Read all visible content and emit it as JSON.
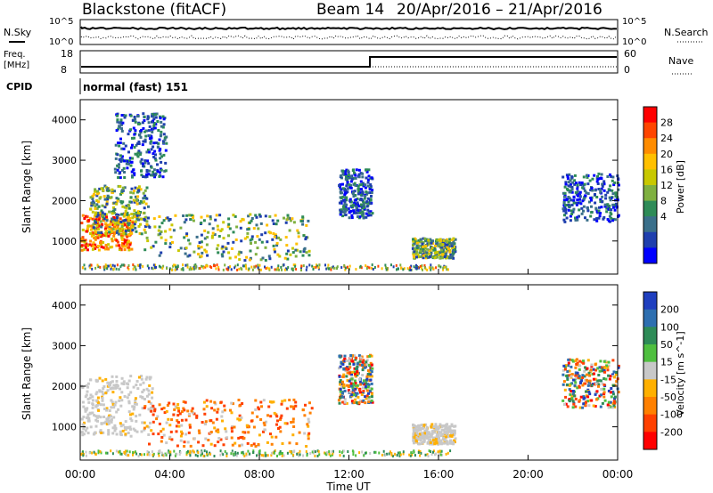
{
  "header": {
    "station": "Blackstone (fitACF)",
    "beam": "Beam 14",
    "dates": "20/Apr/2016 – 21/Apr/2016"
  },
  "top_panels": {
    "nsky_label": "N.Sky",
    "nsearch_label": "N.Search",
    "freq_label": "Freq.",
    "freq_unit": "[MHz]",
    "nave_label": "Nave",
    "cpid_label": "CPID",
    "cpid_text": "normal (fast) 151",
    "noise_ticks": [
      "10^5",
      "10^0"
    ],
    "freq_ticks": [
      "18",
      "8"
    ],
    "nave_ticks": [
      "60",
      "0"
    ]
  },
  "x_axis": {
    "label": "Time UT",
    "ticks": [
      "00:00",
      "04:00",
      "08:00",
      "12:00",
      "16:00",
      "20:00",
      "00:00"
    ]
  },
  "chart_data": [
    {
      "type": "heatmap",
      "panel": "power",
      "ylabel": "Slant Range [km]",
      "xlabel": "Time UT",
      "xlim_hours": [
        0,
        24
      ],
      "ylim": [
        180,
        4500
      ],
      "yticks": [
        1000,
        2000,
        3000,
        4000
      ],
      "colorbar": {
        "label": "Power [dB]",
        "ticks": [
          "28",
          "24",
          "20",
          "16",
          "12",
          "8",
          "4"
        ],
        "colors": [
          "#ff0000",
          "#ff4500",
          "#ff8c00",
          "#ffc000",
          "#c8c800",
          "#7fb040",
          "#2e8b57",
          "#3a6f8a",
          "#1f3fae",
          "#0000ff"
        ]
      },
      "regions": [
        {
          "t0": 0.0,
          "t1": 2.3,
          "r0": 800,
          "r1": 1700,
          "level": "high",
          "note": "strong echo band"
        },
        {
          "t0": 0.4,
          "t1": 3.0,
          "r0": 1200,
          "r1": 2400,
          "level": "medium"
        },
        {
          "t0": 1.5,
          "t1": 3.8,
          "r0": 2600,
          "r1": 4200,
          "level": "low"
        },
        {
          "t0": 2.8,
          "t1": 10.2,
          "r0": 550,
          "r1": 1700,
          "level": "medium"
        },
        {
          "t0": 11.5,
          "t1": 13.0,
          "r0": 1600,
          "r1": 2800,
          "level": "low"
        },
        {
          "t0": 14.8,
          "t1": 16.7,
          "r0": 600,
          "r1": 1100,
          "level": "medium"
        },
        {
          "t0": 21.5,
          "t1": 24.0,
          "r0": 1500,
          "r1": 2700,
          "level": "low"
        }
      ]
    },
    {
      "type": "heatmap",
      "panel": "velocity",
      "ylabel": "Slant Range [km]",
      "xlabel": "Time UT",
      "xlim_hours": [
        0,
        24
      ],
      "ylim": [
        180,
        4500
      ],
      "yticks": [
        1000,
        2000,
        3000,
        4000
      ],
      "colorbar": {
        "label": "Velocity [m s^-1]",
        "ticks": [
          "200",
          "100",
          "50",
          "15",
          "-15",
          "-50",
          "-100",
          "-200"
        ],
        "colors": [
          "#1f3fbf",
          "#2e6fb0",
          "#2e8b57",
          "#4fbf3f",
          "#c8c8c8",
          "#ffb000",
          "#ff8000",
          "#ff4000",
          "#ff0000"
        ]
      },
      "regions": [
        {
          "t0": 0.0,
          "t1": 3.2,
          "r0": 800,
          "r1": 2300,
          "level": "ground",
          "note": "grey near-zero velocity"
        },
        {
          "t0": 2.8,
          "t1": 10.3,
          "r0": 550,
          "r1": 1700,
          "level": "negative",
          "note": "orange/yellow"
        },
        {
          "t0": 11.5,
          "t1": 13.0,
          "r0": 1600,
          "r1": 2800,
          "level": "mixed"
        },
        {
          "t0": 14.8,
          "t1": 16.7,
          "r0": 600,
          "r1": 1100,
          "level": "ground"
        },
        {
          "t0": 21.5,
          "t1": 24.0,
          "r0": 1500,
          "r1": 2700,
          "level": "mixed"
        }
      ]
    }
  ]
}
